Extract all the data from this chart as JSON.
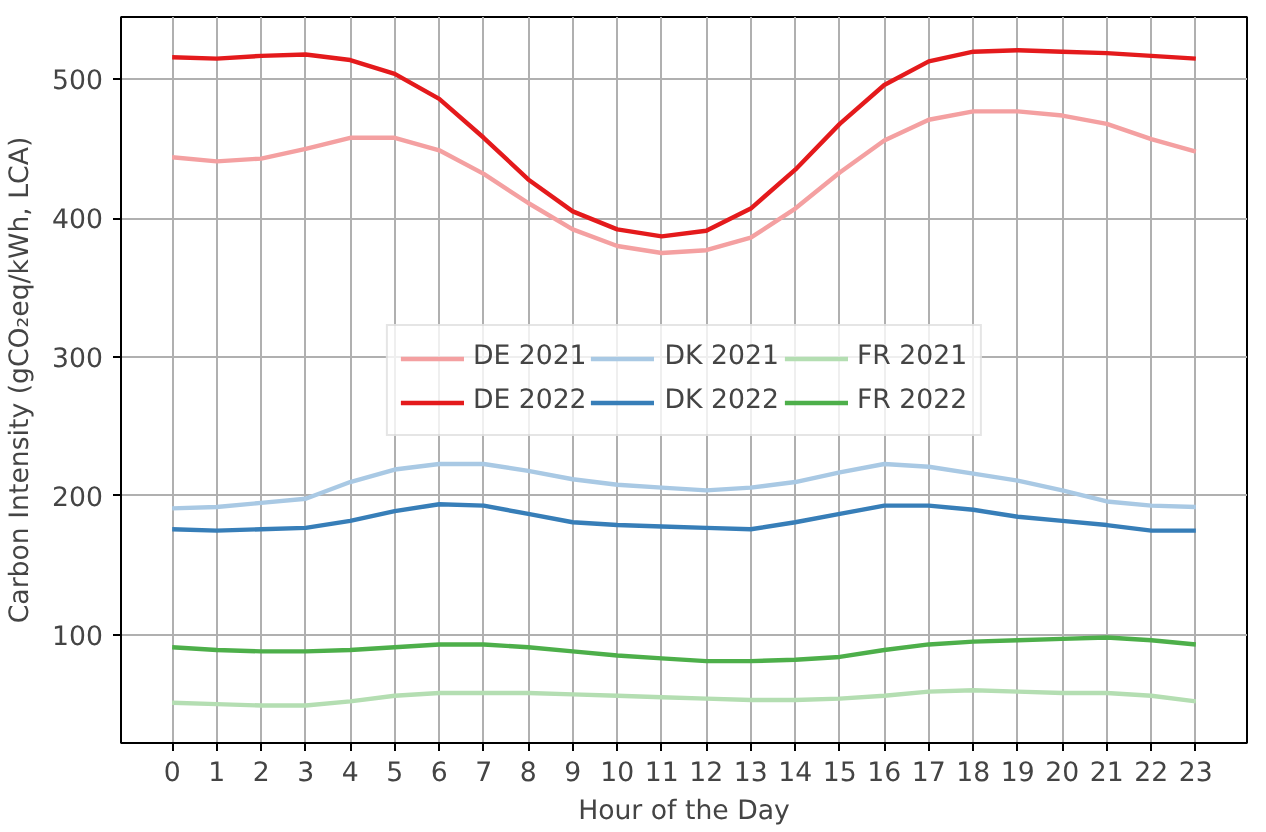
{
  "chart_data": {
    "type": "line",
    "xlabel": "Hour of the Day",
    "ylabel": "Carbon Intensity (gCO₂eq/kWh, LCA)",
    "x": [
      0,
      1,
      2,
      3,
      4,
      5,
      6,
      7,
      8,
      9,
      10,
      11,
      12,
      13,
      14,
      15,
      16,
      17,
      18,
      19,
      20,
      21,
      22,
      23
    ],
    "series": [
      {
        "name": "DE 2021",
        "color": "#f4a0a1",
        "values": [
          444,
          441,
          443,
          450,
          458,
          458,
          449,
          432,
          411,
          392,
          380,
          375,
          377,
          386,
          407,
          433,
          456,
          471,
          477,
          477,
          474,
          468,
          457,
          448
        ]
      },
      {
        "name": "DE 2022",
        "color": "#e41a1c",
        "values": [
          516,
          515,
          517,
          518,
          514,
          504,
          486,
          458,
          428,
          405,
          392,
          387,
          391,
          407,
          435,
          468,
          496,
          513,
          520,
          521,
          520,
          519,
          517,
          515
        ]
      },
      {
        "name": "DK 2021",
        "color": "#a9c9e4",
        "values": [
          191,
          192,
          195,
          198,
          210,
          219,
          223,
          223,
          218,
          212,
          208,
          206,
          204,
          206,
          210,
          217,
          223,
          221,
          216,
          211,
          204,
          196,
          193,
          192
        ]
      },
      {
        "name": "DK 2022",
        "color": "#377eb8",
        "values": [
          176,
          175,
          176,
          177,
          182,
          189,
          194,
          193,
          187,
          181,
          179,
          178,
          177,
          176,
          181,
          187,
          193,
          193,
          190,
          185,
          182,
          179,
          175,
          175
        ]
      },
      {
        "name": "FR 2021",
        "color": "#b4deb2",
        "values": [
          51,
          50,
          49,
          49,
          52,
          56,
          58,
          58,
          58,
          57,
          56,
          55,
          54,
          53,
          53,
          54,
          56,
          59,
          60,
          59,
          58,
          58,
          56,
          52
        ]
      },
      {
        "name": "FR 2022",
        "color": "#4daf4a",
        "values": [
          91,
          89,
          88,
          88,
          89,
          91,
          93,
          93,
          91,
          88,
          85,
          83,
          81,
          81,
          82,
          84,
          89,
          93,
          95,
          96,
          97,
          98,
          96,
          93
        ]
      }
    ],
    "xlim": [
      -1.15,
      24.15
    ],
    "ylim": [
      22,
      545
    ],
    "xticks": [
      0,
      1,
      2,
      3,
      4,
      5,
      6,
      7,
      8,
      9,
      10,
      11,
      12,
      13,
      14,
      15,
      16,
      17,
      18,
      19,
      20,
      21,
      22,
      23
    ],
    "yticks": [
      100,
      200,
      300,
      400,
      500
    ],
    "grid": true,
    "legend": "center",
    "line_style": "solid",
    "marker": "none"
  }
}
